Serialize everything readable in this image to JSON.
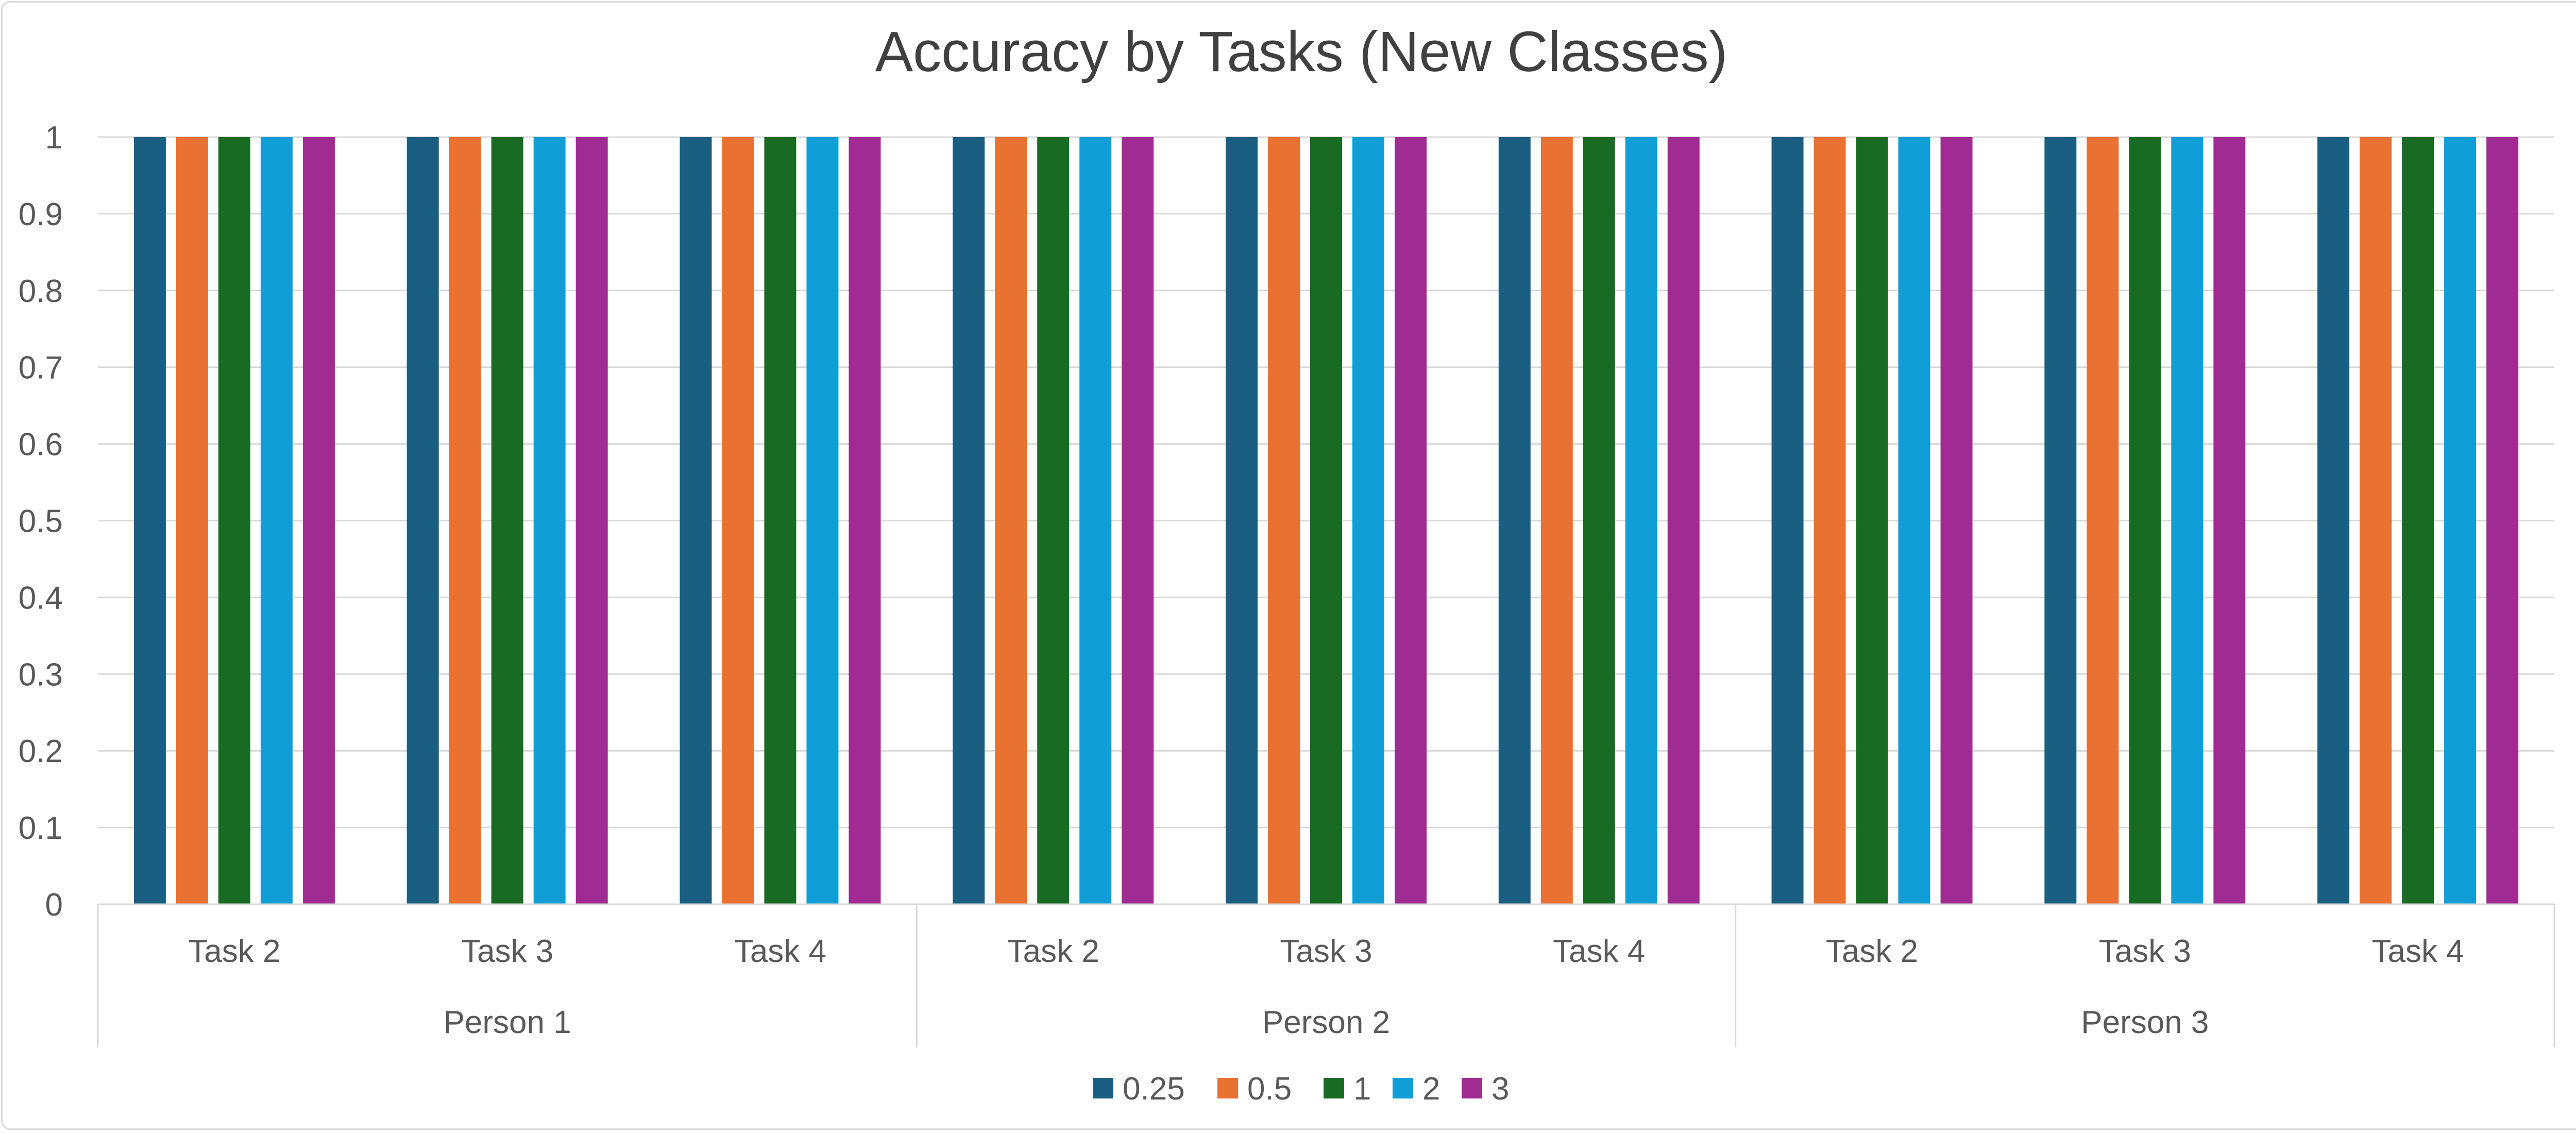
{
  "chart_data": {
    "type": "bar",
    "title": "Accuracy by Tasks (New Classes)",
    "xlabel": "",
    "ylabel": "",
    "ylim": [
      0,
      1
    ],
    "yticks": [
      "0",
      "0.1",
      "0.2",
      "0.3",
      "0.4",
      "0.5",
      "0.6",
      "0.7",
      "0.8",
      "0.9",
      "1"
    ],
    "groups": [
      {
        "label": "Person 1",
        "categories": [
          "Task 2",
          "Task 3",
          "Task 4"
        ]
      },
      {
        "label": "Person 2",
        "categories": [
          "Task 2",
          "Task 3",
          "Task 4"
        ]
      },
      {
        "label": "Person 3",
        "categories": [
          "Task 2",
          "Task 3",
          "Task 4"
        ]
      }
    ],
    "series": [
      {
        "name": "0.25",
        "color": "#1a5f82",
        "values": [
          1,
          1,
          1,
          1,
          1,
          1,
          1,
          1,
          1
        ]
      },
      {
        "name": "0.5",
        "color": "#e97132",
        "values": [
          1,
          1,
          1,
          1,
          1,
          1,
          1,
          1,
          1
        ]
      },
      {
        "name": "1",
        "color": "#196b24",
        "values": [
          1,
          1,
          1,
          1,
          1,
          1,
          1,
          1,
          1
        ]
      },
      {
        "name": "2",
        "color": "#0f9ed5",
        "values": [
          1,
          1,
          1,
          1,
          1,
          1,
          1,
          1,
          1
        ]
      },
      {
        "name": "3",
        "color": "#a02b93",
        "values": [
          1,
          1,
          1,
          1,
          1,
          1,
          1,
          1,
          1
        ]
      }
    ],
    "grid": true,
    "legend": "bottom-center"
  }
}
